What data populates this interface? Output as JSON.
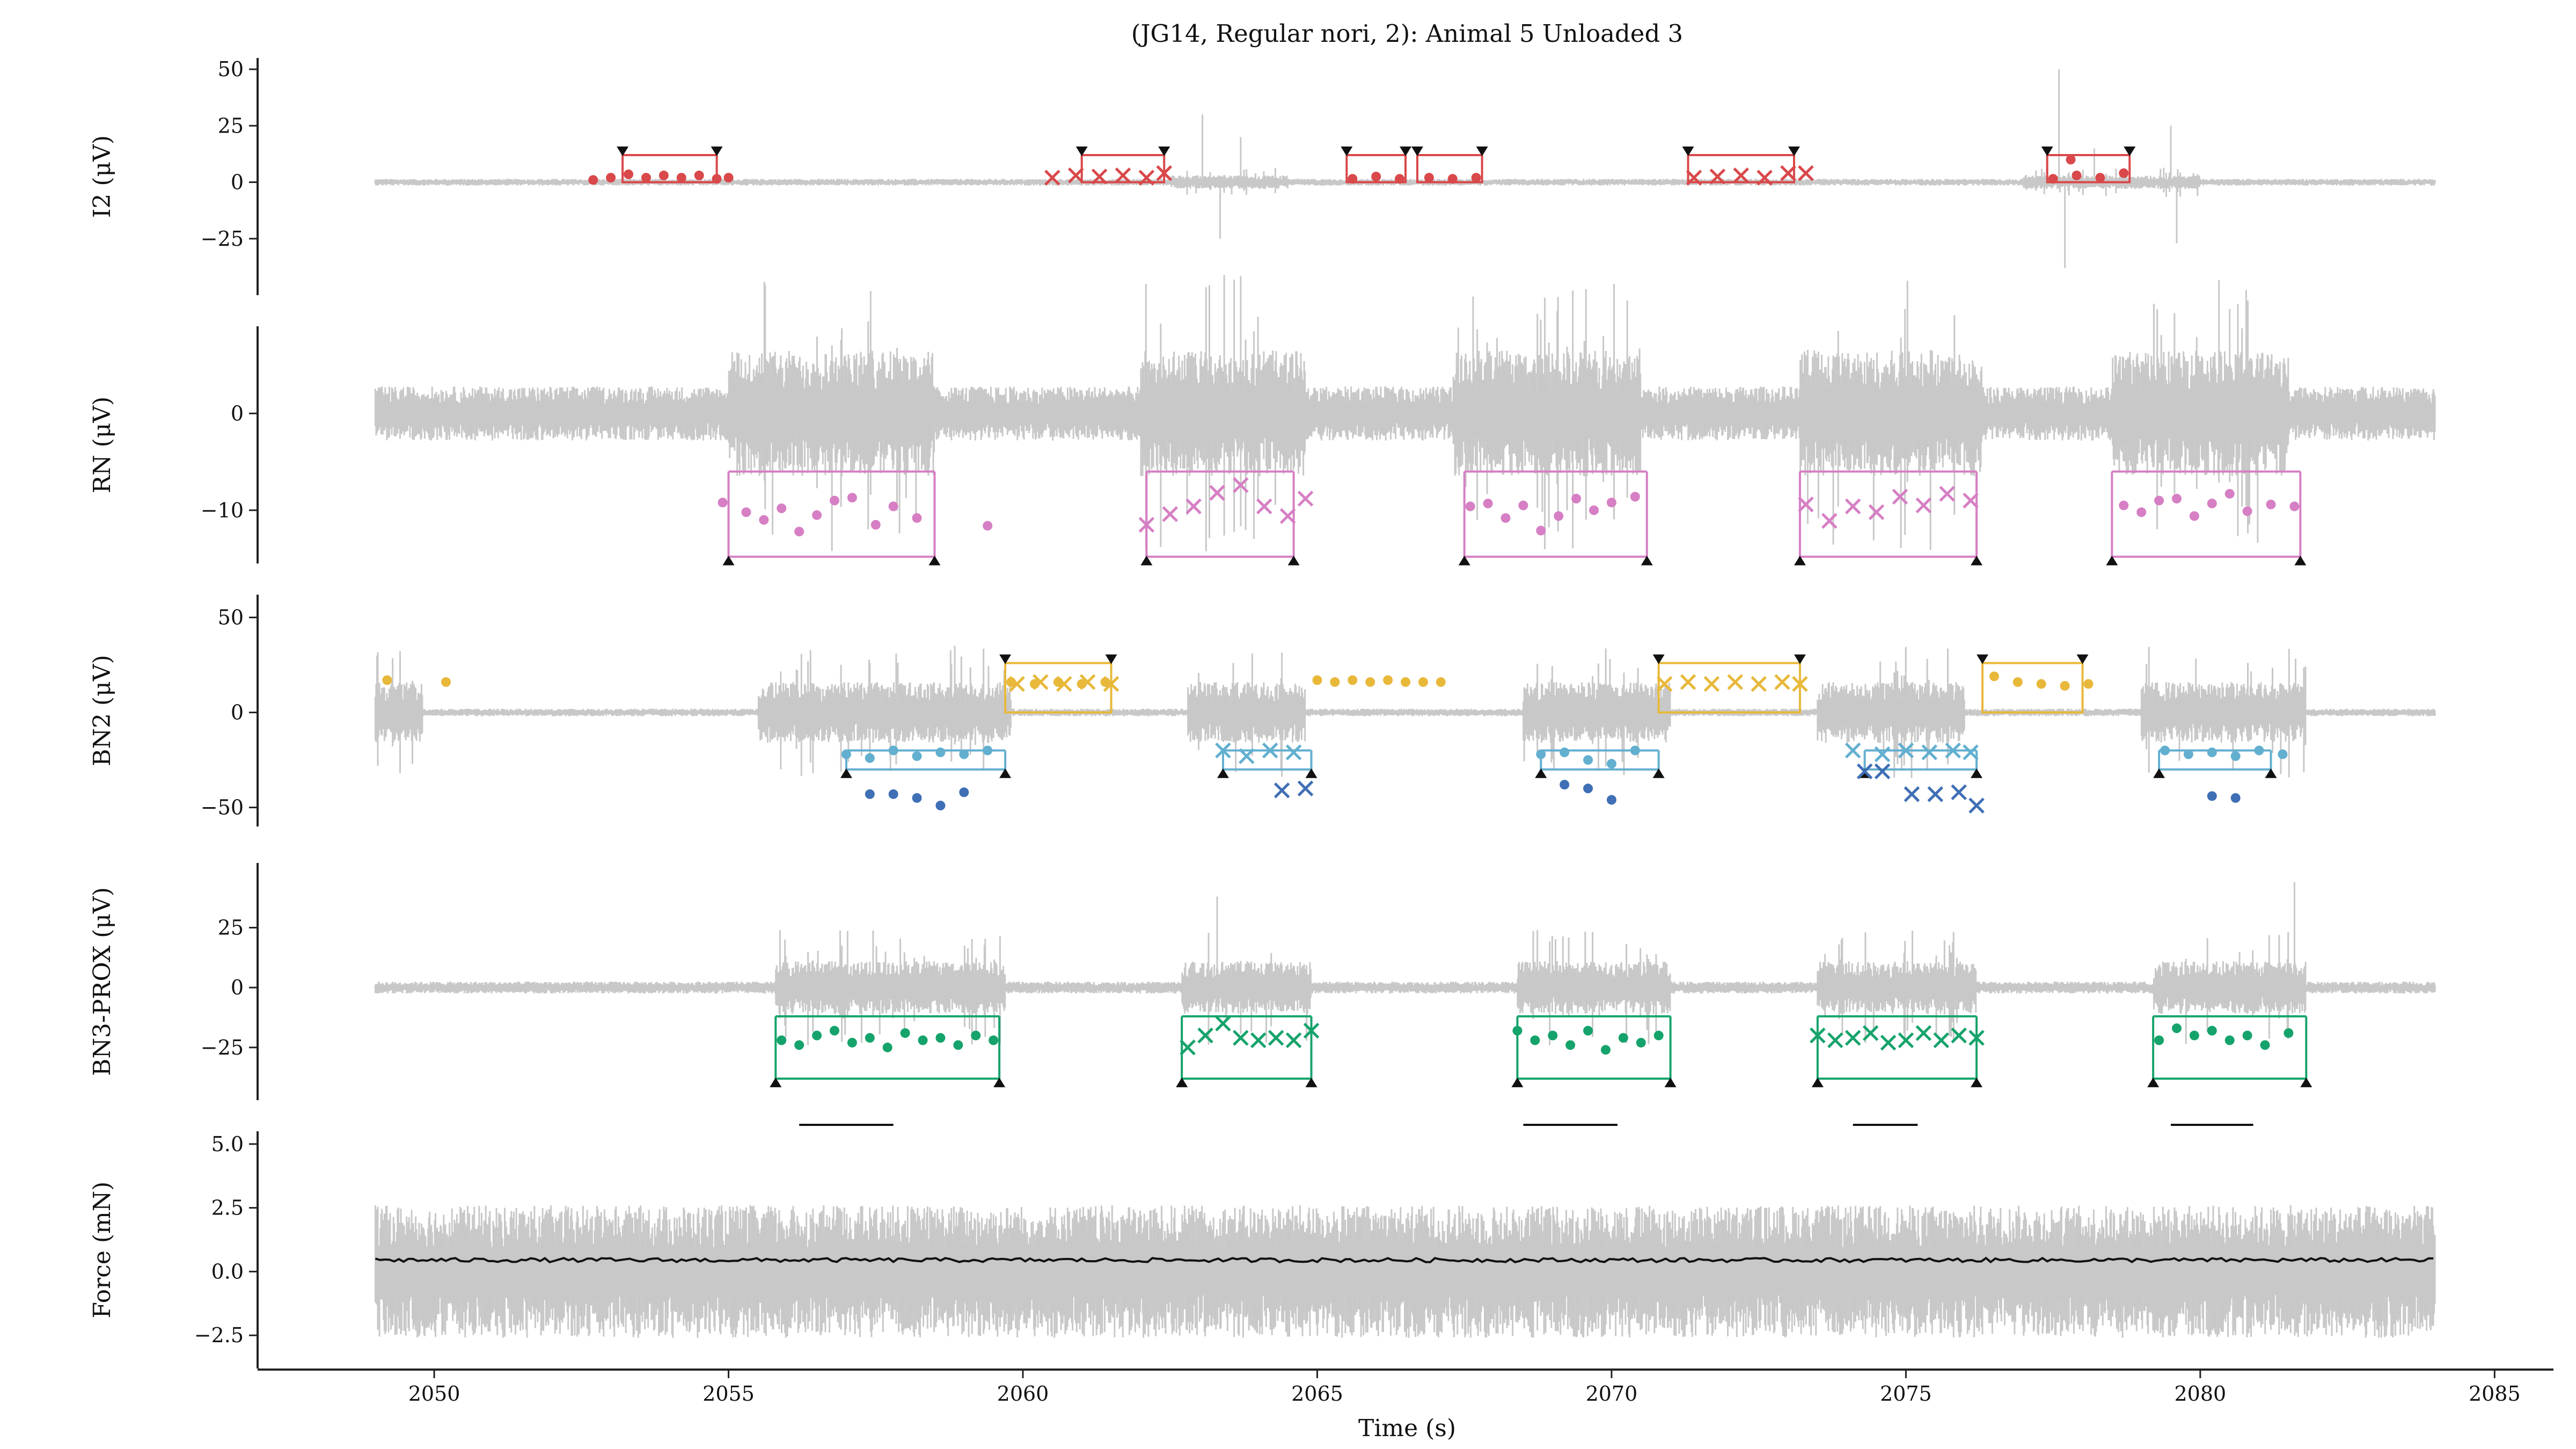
{
  "chart_data": {
    "type": "line",
    "title": "(JG14, Regular nori, 2): Animal 5 Unloaded 3",
    "xlabel": "Time (s)",
    "xlim": [
      2047,
      2086
    ],
    "xticks": [
      2050,
      2055,
      2060,
      2065,
      2070,
      2075,
      2080,
      2085
    ],
    "trace_color": "#c8c8c8",
    "panels": [
      {
        "id": "i2",
        "ylabel": "I2 (μV)",
        "ylim": [
          -50,
          55
        ],
        "yticks": [
          50,
          25,
          0,
          -25
        ],
        "ytick_labels": [
          "50",
          "25",
          "0",
          "−25"
        ],
        "trace": {
          "base_amp": 1.5,
          "active_amp": 3,
          "active": [
            [
              2062.5,
              2064.5
            ],
            [
              2077,
              2080
            ]
          ],
          "spikes": [
            [
              2063.05,
              30
            ],
            [
              2063.35,
              -25
            ],
            [
              2063.7,
              20
            ],
            [
              2077.6,
              50
            ],
            [
              2077.7,
              -38
            ],
            [
              2078.2,
              15
            ],
            [
              2079.5,
              25
            ],
            [
              2079.6,
              -27
            ]
          ]
        },
        "series": [
          {
            "name": "",
            "color": "#d9484a",
            "marker": "dot",
            "x": [
              2052.7,
              2053.0,
              2053.3,
              2053.6,
              2053.9,
              2054.2,
              2054.5,
              2054.8,
              2055.0,
              2065.6,
              2066.0,
              2066.4,
              2066.9,
              2067.3,
              2067.7,
              2077.5,
              2077.9,
              2078.3,
              2078.7,
              2077.8
            ],
            "y": [
              1,
              2,
              3.5,
              2,
              3,
              2,
              3,
              1.5,
              2,
              1.5,
              2.5,
              1.5,
              2,
              1.5,
              2,
              1.5,
              3,
              2,
              4,
              10
            ]
          },
          {
            "name": "",
            "color": "#d9484a",
            "marker": "x",
            "x": [
              2060.5,
              2060.9,
              2061.3,
              2061.7,
              2062.1,
              2062.4,
              2071.4,
              2071.8,
              2072.2,
              2072.6,
              2073.0,
              2073.3
            ],
            "y": [
              2,
              3,
              2.5,
              3,
              2,
              4,
              2,
              2.5,
              3,
              2,
              4,
              4
            ]
          }
        ],
        "bursts": [
          [
            2053.2,
            2054.8,
            "above"
          ],
          [
            2061.0,
            2062.4,
            "above"
          ],
          [
            2065.5,
            2066.5,
            "above"
          ],
          [
            2066.7,
            2067.8,
            "above"
          ],
          [
            2071.3,
            2073.1,
            "above"
          ],
          [
            2077.4,
            2078.8,
            "above"
          ]
        ],
        "burst_color": "#d9484a"
      },
      {
        "id": "rn",
        "ylabel": "RN (μV)",
        "ylim": [
          -15.5,
          9
        ],
        "yticks": [
          0,
          -10
        ],
        "ytick_labels": [
          "0",
          "−10"
        ],
        "trace": {
          "base_amp": 2.8,
          "active_amp": 6.5,
          "active": [
            [
              2055,
              2058.5
            ],
            [
              2062,
              2064.8
            ],
            [
              2067.3,
              2070.5
            ],
            [
              2073.2,
              2076.3
            ],
            [
              2078.5,
              2081.5
            ]
          ],
          "spikes": []
        },
        "series": [
          {
            "name": "",
            "color": "#d67fc4",
            "marker": "dot",
            "x": [
              2054.9,
              2055.3,
              2055.6,
              2055.9,
              2056.2,
              2056.5,
              2056.8,
              2057.1,
              2057.5,
              2057.8,
              2058.2,
              2059.4,
              2067.6,
              2067.9,
              2068.2,
              2068.5,
              2068.8,
              2069.1,
              2069.4,
              2069.7,
              2070.0,
              2070.4,
              2078.7,
              2079.0,
              2079.3,
              2079.6,
              2079.9,
              2080.2,
              2080.5,
              2080.8,
              2081.2,
              2081.6
            ],
            "y": [
              -9.2,
              -10.2,
              -11.0,
              -9.8,
              -12.2,
              -10.5,
              -9.0,
              -8.7,
              -11.5,
              -9.6,
              -10.8,
              -11.6,
              -9.6,
              -9.3,
              -10.8,
              -9.5,
              -12.1,
              -10.6,
              -8.8,
              -10.0,
              -9.2,
              -8.6,
              -9.5,
              -10.2,
              -9.0,
              -8.8,
              -10.6,
              -9.3,
              -8.3,
              -10.1,
              -9.4,
              -9.6
            ]
          },
          {
            "name": "",
            "color": "#d67fc4",
            "marker": "x",
            "x": [
              2062.1,
              2062.5,
              2062.9,
              2063.3,
              2063.7,
              2064.1,
              2064.5,
              2064.8,
              2073.3,
              2073.7,
              2074.1,
              2074.5,
              2074.9,
              2075.3,
              2075.7,
              2076.1
            ],
            "y": [
              -11.5,
              -10.4,
              -9.6,
              -8.2,
              -7.4,
              -9.6,
              -10.6,
              -8.8,
              -9.4,
              -11.1,
              -9.6,
              -10.2,
              -8.6,
              -9.5,
              -8.3,
              -9.0
            ]
          }
        ],
        "bursts": [
          [
            2055.0,
            2058.5,
            "below"
          ],
          [
            2062.1,
            2064.6,
            "below"
          ],
          [
            2067.5,
            2070.6,
            "below"
          ],
          [
            2073.2,
            2076.2,
            "below"
          ],
          [
            2078.5,
            2081.7,
            "below"
          ]
        ],
        "burst_color": "#d67fc4"
      },
      {
        "id": "bn2",
        "ylabel": "BN2 (μV)",
        "ylim": [
          -60,
          62
        ],
        "yticks": [
          50,
          0,
          -50
        ],
        "ytick_labels": [
          "50",
          "0",
          "−50"
        ],
        "trace": {
          "base_amp": 2,
          "active_amp": 16,
          "active": [
            [
              2049,
              2049.8
            ],
            [
              2055.5,
              2059.8
            ],
            [
              2062.8,
              2064.8
            ],
            [
              2068.5,
              2071
            ],
            [
              2073.5,
              2076
            ],
            [
              2079,
              2081.8
            ]
          ],
          "spikes": []
        },
        "series": [
          {
            "name": "",
            "color": "#e8b83a",
            "marker": "dot",
            "x": [
              2049.2,
              2050.2,
              2059.8,
              2060.2,
              2060.6,
              2061.0,
              2061.4,
              2065.0,
              2065.3,
              2065.6,
              2065.9,
              2066.2,
              2066.5,
              2066.8,
              2067.1,
              2076.5,
              2076.9,
              2077.3,
              2077.7,
              2078.1
            ],
            "y": [
              17,
              16,
              16,
              15,
              16,
              15,
              16,
              17,
              16,
              17,
              16,
              17,
              16,
              16,
              16,
              19,
              16,
              15,
              14,
              15
            ]
          },
          {
            "name": "",
            "color": "#e8b83a",
            "marker": "x",
            "x": [
              2059.9,
              2060.3,
              2060.7,
              2061.1,
              2061.5,
              2070.9,
              2071.3,
              2071.7,
              2072.1,
              2072.5,
              2072.9,
              2073.2
            ],
            "y": [
              15,
              16,
              15,
              16,
              15,
              15,
              16,
              15,
              16,
              15,
              16,
              15
            ]
          },
          {
            "name": "",
            "color": "#62afd0",
            "marker": "dot",
            "x": [
              2057.0,
              2057.4,
              2057.8,
              2058.2,
              2058.6,
              2059.0,
              2059.4,
              2068.8,
              2069.2,
              2069.6,
              2070.0,
              2070.4,
              2079.4,
              2079.8,
              2080.2,
              2080.6,
              2081.0,
              2081.4
            ],
            "y": [
              -22,
              -24,
              -20,
              -23,
              -21,
              -22,
              -20,
              -22,
              -21,
              -25,
              -27,
              -20,
              -20,
              -22,
              -21,
              -23,
              -20,
              -22
            ]
          },
          {
            "name": "",
            "color": "#62afd0",
            "marker": "x",
            "x": [
              2063.4,
              2063.8,
              2064.2,
              2064.6,
              2074.1,
              2074.6,
              2075.0,
              2075.4,
              2075.8,
              2076.1
            ],
            "y": [
              -20,
              -23,
              -20,
              -21,
              -20,
              -22,
              -20,
              -21,
              -20,
              -21
            ]
          },
          {
            "name": "",
            "color": "#3f6fb5",
            "marker": "dot",
            "x": [
              2057.4,
              2057.8,
              2058.2,
              2058.6,
              2059.0,
              2069.2,
              2069.6,
              2070.0,
              2080.2,
              2080.6
            ],
            "y": [
              -43,
              -43,
              -45,
              -49,
              -42,
              -38,
              -40,
              -46,
              -44,
              -45
            ]
          },
          {
            "name": "",
            "color": "#3f6fb5",
            "marker": "x",
            "x": [
              2064.4,
              2064.8,
              2074.3,
              2074.6,
              2075.1,
              2075.5,
              2075.9,
              2076.2
            ],
            "y": [
              -41,
              -40,
              -31,
              -31,
              -43,
              -43,
              -42,
              -49
            ]
          }
        ],
        "bursts": [
          [
            2059.7,
            2061.5,
            "above",
            "#e8b83a"
          ],
          [
            2070.8,
            2073.2,
            "above",
            "#e8b83a"
          ],
          [
            2076.3,
            2078.0,
            "above",
            "#e8b83a"
          ],
          [
            2057.0,
            2059.7,
            "below",
            "#62afd0"
          ],
          [
            2063.4,
            2064.9,
            "below",
            "#62afd0"
          ],
          [
            2068.8,
            2070.8,
            "below",
            "#62afd0"
          ],
          [
            2074.3,
            2076.2,
            "below",
            "#62afd0"
          ],
          [
            2079.3,
            2081.2,
            "below",
            "#62afd0"
          ]
        ],
        "burst_color": "#62afd0"
      },
      {
        "id": "bn3",
        "ylabel": "BN3-PROX (μV)",
        "ylim": [
          -47,
          52
        ],
        "yticks": [
          25,
          0,
          -25
        ],
        "ytick_labels": [
          "25",
          "0",
          "−25"
        ],
        "trace": {
          "base_amp": 2.5,
          "active_amp": 11,
          "active": [
            [
              2055.8,
              2059.7
            ],
            [
              2062.7,
              2064.9
            ],
            [
              2068.4,
              2071
            ],
            [
              2073.5,
              2076.2
            ],
            [
              2079.2,
              2081.8
            ]
          ],
          "spikes": [
            [
              2063.3,
              38
            ],
            [
              2081.6,
              44
            ]
          ]
        },
        "series": [
          {
            "name": "",
            "color": "#16a36b",
            "marker": "dot",
            "x": [
              2055.9,
              2056.2,
              2056.5,
              2056.8,
              2057.1,
              2057.4,
              2057.7,
              2058.0,
              2058.3,
              2058.6,
              2058.9,
              2059.2,
              2059.5,
              2068.4,
              2068.7,
              2069.0,
              2069.3,
              2069.6,
              2069.9,
              2070.2,
              2070.5,
              2070.8,
              2079.3,
              2079.6,
              2079.9,
              2080.2,
              2080.5,
              2080.8,
              2081.1,
              2081.5
            ],
            "y": [
              -22,
              -24,
              -20,
              -18,
              -23,
              -21,
              -25,
              -19,
              -22,
              -21,
              -24,
              -20,
              -22,
              -18,
              -22,
              -20,
              -24,
              -18,
              -26,
              -21,
              -23,
              -20,
              -22,
              -17,
              -20,
              -18,
              -22,
              -20,
              -24,
              -19
            ]
          },
          {
            "name": "",
            "color": "#16a36b",
            "marker": "x",
            "x": [
              2062.8,
              2063.1,
              2063.4,
              2063.7,
              2064.0,
              2064.3,
              2064.6,
              2064.9,
              2073.5,
              2073.8,
              2074.1,
              2074.4,
              2074.7,
              2075.0,
              2075.3,
              2075.6,
              2075.9,
              2076.2
            ],
            "y": [
              -25,
              -20,
              -15,
              -21,
              -22,
              -21,
              -22,
              -18,
              -20,
              -22,
              -21,
              -19,
              -23,
              -22,
              -19,
              -22,
              -20,
              -21
            ]
          }
        ],
        "bursts": [
          [
            2055.8,
            2059.6,
            "below"
          ],
          [
            2062.7,
            2064.9,
            "below"
          ],
          [
            2068.4,
            2071.0,
            "below"
          ],
          [
            2073.5,
            2076.2,
            "below"
          ],
          [
            2079.2,
            2081.8,
            "below"
          ]
        ],
        "burst_color": "#16a36b"
      },
      {
        "id": "force",
        "ylabel": "Force (mN)",
        "ylim": [
          -3.8,
          5.5
        ],
        "yticks": [
          5.0,
          2.5,
          0.0,
          -2.5
        ],
        "ytick_labels": [
          "5.0",
          "2.5",
          "0.0",
          "−2.5"
        ],
        "trace": {
          "base_amp": 2.6,
          "active_amp": 2.6,
          "active": [],
          "spikes": []
        },
        "mean_line": {
          "color": "#111111",
          "level": 0.45
        },
        "events": [
          [
            2056.2,
            2057.8
          ],
          [
            2068.5,
            2070.1
          ],
          [
            2074.1,
            2075.2
          ],
          [
            2079.5,
            2080.9
          ]
        ],
        "series": [],
        "bursts": [],
        "burst_color": "#111111"
      }
    ],
    "trace_range": [
      2049.0,
      2084.0
    ]
  }
}
